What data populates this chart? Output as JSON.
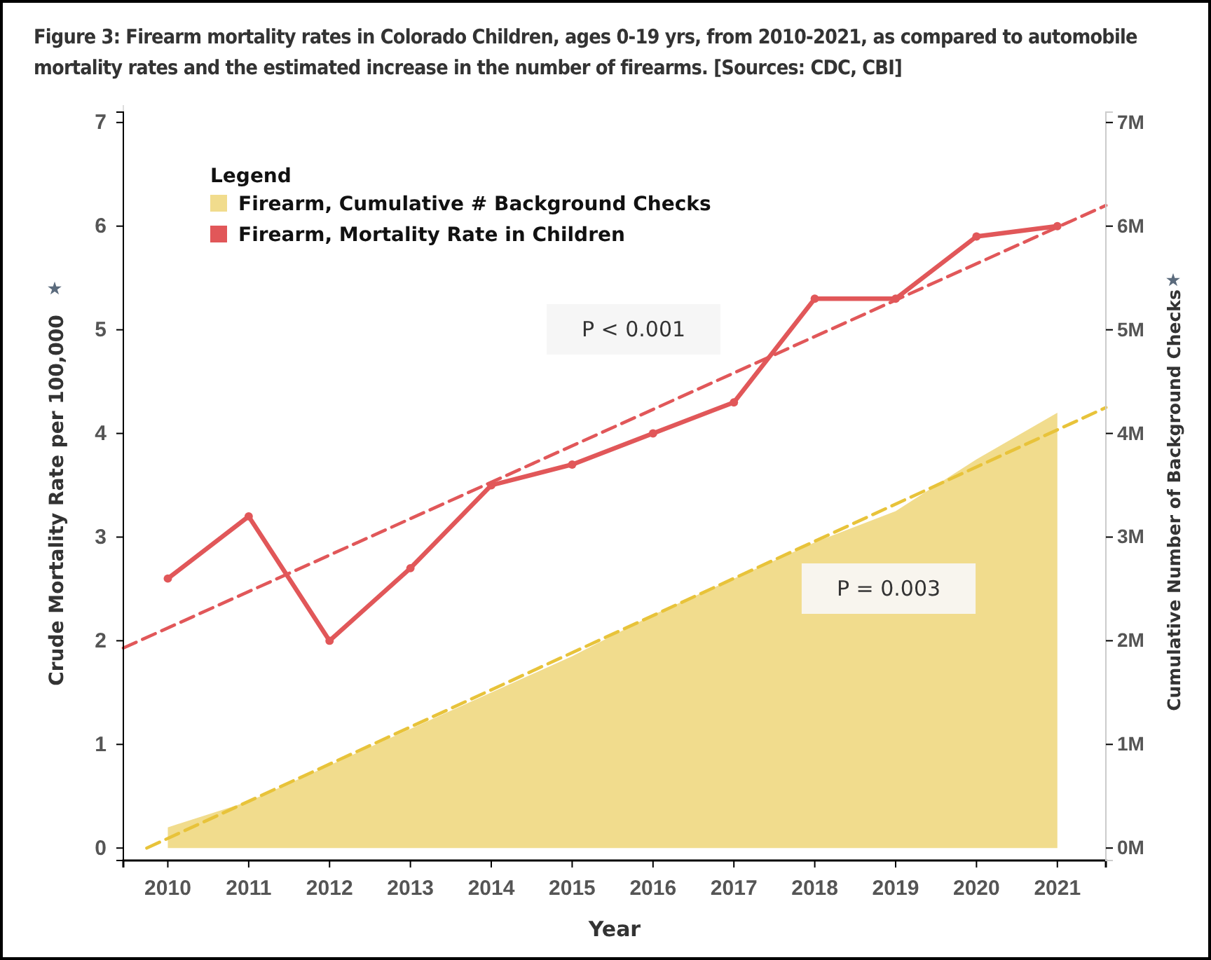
{
  "chart_data": {
    "type": "line",
    "title": "Figure 3: Firearm mortality rates in Colorado Children, ages 0-19 yrs, from 2010-2021, as compared to automobile mortality rates and the estimated increase in the number of firearms. [Sources: CDC, CBI]",
    "xlabel": "Year",
    "ylabel": "Crude Mortality Rate per 100,000",
    "y2label": "Cumulative Number of Background Checks",
    "legend_title": "Legend",
    "legend": "top left",
    "x": [
      2010,
      2011,
      2012,
      2013,
      2014,
      2015,
      2016,
      2017,
      2018,
      2019,
      2020,
      2021
    ],
    "xlim": [
      2009.45,
      2021.6
    ],
    "xticks": [
      2010,
      2011,
      2012,
      2013,
      2014,
      2015,
      2016,
      2017,
      2018,
      2019,
      2020,
      2021
    ],
    "ylim": [
      -0.12,
      7.1
    ],
    "yticks": [
      0,
      1,
      2,
      3,
      4,
      5,
      6,
      7
    ],
    "y2lim": [
      -120000,
      7100000
    ],
    "y2ticks": [
      {
        "value": 0,
        "label": "0M"
      },
      {
        "value": 1000000,
        "label": "1M"
      },
      {
        "value": 2000000,
        "label": "2M"
      },
      {
        "value": 3000000,
        "label": "3M"
      },
      {
        "value": 4000000,
        "label": "4M"
      },
      {
        "value": 5000000,
        "label": "5M"
      },
      {
        "value": 6000000,
        "label": "6M"
      },
      {
        "value": 7000000,
        "label": "7M"
      }
    ],
    "series": [
      {
        "name": "Firearm, Cumulative # Background Checks",
        "type": "area",
        "axis": "y2",
        "color": "#f1dc8d",
        "values": [
          200000,
          450000,
          800000,
          1150000,
          1500000,
          1850000,
          2250000,
          2600000,
          2950000,
          3250000,
          3750000,
          4200000
        ]
      },
      {
        "name": "Firearm, Mortality Rate in Children",
        "type": "line",
        "color": "#e15759",
        "marker": "circle",
        "values": [
          2.6,
          3.2,
          2.0,
          2.7,
          3.5,
          3.7,
          4.0,
          4.3,
          5.3,
          5.3,
          5.9,
          6.0
        ]
      },
      {
        "type": "line",
        "color": "#e15759",
        "line_style": "dashed",
        "x": [
          2009.45,
          2021.6
        ],
        "values": [
          1.93,
          6.2
        ]
      },
      {
        "type": "line",
        "axis": "y2",
        "color": "#e8c33a",
        "line_style": "dashed",
        "x": [
          2009.74,
          2021.6
        ],
        "values": [
          0,
          4250000
        ]
      }
    ],
    "annotations": [
      "P < 0.001",
      "P = 0.003"
    ]
  }
}
